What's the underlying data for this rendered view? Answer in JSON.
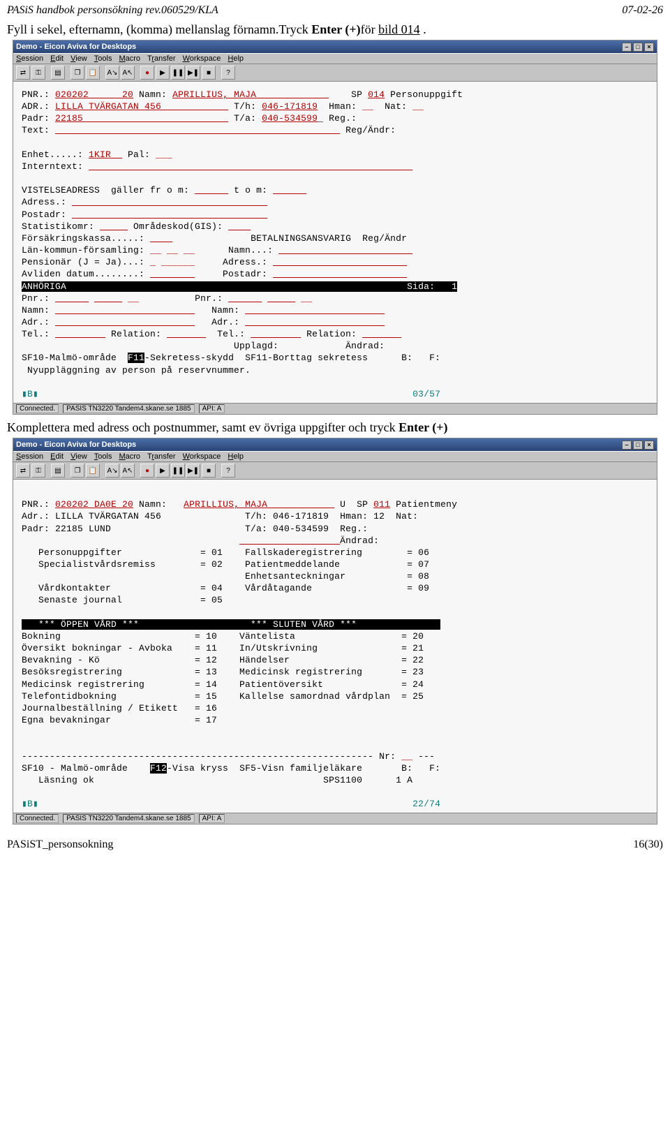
{
  "header": {
    "left": "PASiS handbok personsökning rev.060529/KLA",
    "right": "07-02-26"
  },
  "intro": {
    "pre": "Fyll i sekel, efternamn, (komma) mellanslag förnamn.Tryck ",
    "bold": "Enter (+)",
    "post": "för ",
    "underline": "bild 014",
    "tail": " ."
  },
  "win": {
    "title": "Demo - Eicon Aviva for Desktops",
    "menus": [
      "Session",
      "Edit",
      "View",
      "Tools",
      "Macro",
      "Transfer",
      "Workspace",
      "Help"
    ],
    "winbtns": [
      "–",
      "□",
      "×"
    ],
    "status": {
      "connected": "Connected.",
      "session": "PASIS TN3220 Tandem4.skane.se 1885",
      "api": "API: A"
    }
  },
  "screen1": {
    "coord": "03/57",
    "lines": {
      "l1_a": "PNR.: ",
      "l1_red1": "020202      20",
      "l1_b": " Namn: ",
      "l1_red2": "APRILLIUS, MAJA             ",
      "l1_c": "    SP ",
      "l1_red3": "014",
      "l1_d": " Personuppgift",
      "l2_a": "ADR.: ",
      "l2_red1": "LILLA TVÄRGATAN 456            ",
      "l2_b": " T/h: ",
      "l2_red2": "046-171819",
      "l2_c": "  Hman: ",
      "l2_red3": "__",
      "l2_d": "  Nat: ",
      "l2_red4": "__",
      "l3_a": "Padr: ",
      "l3_red1": "22185                          ",
      "l3_b": " T/a: ",
      "l3_red2": "040-534599",
      "l3_c": "_ Reg.:",
      "l4_a": "Text: ",
      "l4_red1": "                                                   ",
      "l4_b": " Reg/Ändr:",
      "l5": "",
      "l6_a": "Enhet.....: ",
      "l6_red1": "1KIR  ",
      "l6_b": " Pal: ",
      "l6_red2": "___",
      "l7_a": "Interntext: ",
      "l7_red1": "                                                          ",
      "l8": "",
      "l9_a": "VISTELSEADRESS  gäller fr o m: ",
      "l9_red1": "      ",
      "l9_b": " t o m: ",
      "l9_red2": "      ",
      "l10_a": "Adress.: ",
      "l10_red1": "                                   ",
      "l11_a": "Postadr: ",
      "l11_red1": "                                   ",
      "l12_a": "Statistikomr: ",
      "l12_red1": "     ",
      "l12_b": " Områdeskod(GIS): ",
      "l12_red2": "    ",
      "l13_a": "Försäkringskassa.....: ",
      "l13_red1": "    ",
      "l13_b": "              BETALNINGSANSVARIG  Reg/Ändr",
      "l14_a": "Län-kommun-församling: ",
      "l14_red1": "__ __ __",
      "l14_b": "      Namn...: ",
      "l14_red2": "                        ",
      "l15_a": "Pensionär (J = Ja)...: ",
      "l15_red1": "_ ______",
      "l15_b": "     Adress.: ",
      "l15_red2": "                        ",
      "l16_a": "Avliden datum........: ",
      "l16_red1": "        ",
      "l16_b": "     Postadr: ",
      "l16_red2": "                        ",
      "l17_inv": "ANHÖRIGA                                                             Sida:   1",
      "l18_a": "Pnr.: ",
      "l18_r1": "      ",
      "l18_b": " ",
      "l18_r2": "     ",
      "l18_c": " ",
      "l18_r3": "__",
      "l18_d": "          Pnr.: ",
      "l18_r4": "      ",
      "l18_e": " ",
      "l18_r5": "     ",
      "l18_f": " ",
      "l18_r6": "__",
      "l19_a": "Namn: ",
      "l19_r1": "                         ",
      "l19_b": "   Namn: ",
      "l19_r2": "                         ",
      "l20_a": "Adr.: ",
      "l20_r1": "                         ",
      "l20_b": "   Adr.: ",
      "l20_r2": "                         ",
      "l21_a": "Tel.: ",
      "l21_r1": "         ",
      "l21_b": " Relation: ",
      "l21_r2": "       ",
      "l21_c": "  Tel.: ",
      "l21_r3": "         ",
      "l21_d": " Relation: ",
      "l21_r4": "       ",
      "l22": "                                      Upplagd:            Ändrad:",
      "l23_a": "SF10-Malmö-område  ",
      "l23_inv": "F11",
      "l23_b": "-Sekretess-skydd  SF11-Borttag sekretess      B:   F:",
      "l24": " Nyuppläggning av person på reservnummer."
    }
  },
  "caption2": {
    "pre": "Komplettera med adress och postnummer, samt ev övriga uppgifter och tryck ",
    "bold": "Enter (+)"
  },
  "screen2": {
    "coord": "22/74",
    "lines": {
      "l1_a": "PNR.: ",
      "l1_r1": "020202 DA0E 20",
      "l1_b": " Namn:   ",
      "l1_r2": "APRILLIUS, MAJA            ",
      "l1_c": " U  SP ",
      "l1_r3": "011",
      "l1_d": " Patientmeny",
      "l2": "Adr.: LILLA TVÄRGATAN 456               T/h: 046-171819  Hman: 12  Nat:",
      "l3": "Padr: 22185 LUND                        T/a: 040-534599  Reg.:",
      "l4_a": "                                       ",
      "l4_r1": "                  ",
      "l4_b": "Ändrad:",
      "l5": "   Personuppgifter              = 01    Fallskaderegistrering        = 06",
      "l6": "   Specialistvårdsremiss        = 02    Patientmeddelande            = 07",
      "l7": "                                        Enhetsanteckningar           = 08",
      "l8": "   Vårdkontakter                = 04    Vårdåtagande                 = 09",
      "l9": "   Senaste journal              = 05",
      "l10": "",
      "l11_inv": "   *** ÖPPEN VÅRD ***                    *** SLUTEN VÅRD ***               ",
      "l12": "Bokning                        = 10    Väntelista                   = 20",
      "l13": "Översikt bokningar - Avboka    = 11    In/Utskrivning               = 21",
      "l14": "Bevakning - Kö                 = 12    Händelser                    = 22",
      "l15": "Besöksregistrering             = 13    Medicinsk registrering       = 23",
      "l16": "Medicinsk registrering         = 14    Patientöversikt              = 24",
      "l17": "Telefontidbokning              = 15    Kallelse samordnad vårdplan  = 25",
      "l18": "Journalbeställning / Etikett   = 16",
      "l19": "Egna bevakningar               = 17",
      "l20": "",
      "l21": "",
      "l22_a": "--------------------------------------------------------------- Nr: ",
      "l22_r1": "__",
      "l22_b": " ---",
      "l23_a": "SF10 - Malmö-område    ",
      "l23_inv": "F12",
      "l23_b": "-Visa kryss  SF5-Visn familjeläkare       B:   F:",
      "l24": "   Läsning ok                                         SPS1100      1 A"
    }
  },
  "footer": {
    "left": "PASiST_personsokning",
    "right": "16(30)"
  }
}
